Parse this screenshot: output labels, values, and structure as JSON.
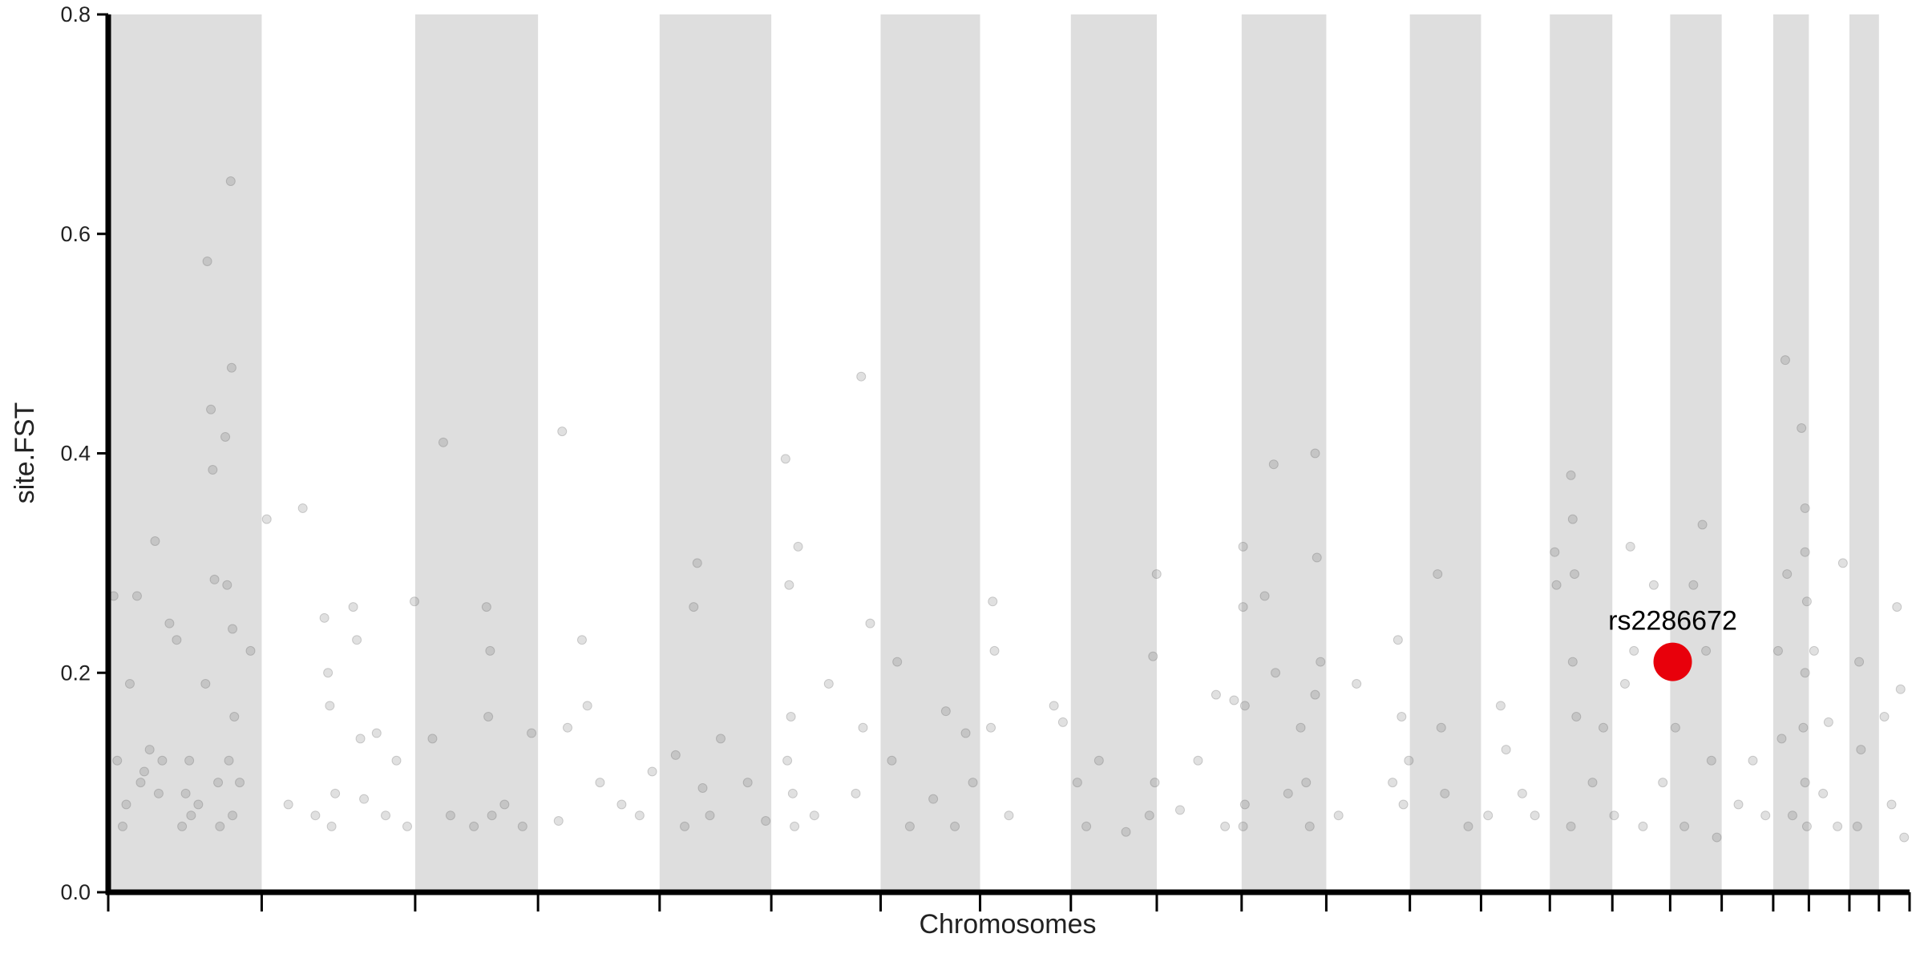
{
  "chart_data": {
    "type": "scatter",
    "x_label": "Chromosomes",
    "y_label": "site.FST",
    "xlim": [
      0,
      100
    ],
    "ylim": [
      0,
      0.8
    ],
    "yticks": [
      {
        "value": 0,
        "label": "0.0"
      },
      0.2,
      0.4,
      0.6,
      {
        "value": 0.8,
        "label": "0.8"
      }
    ],
    "xticks": [
      0,
      8.52,
      17.04,
      23.86,
      30.61,
      36.81,
      42.88,
      48.4,
      53.44,
      58.21,
      62.92,
      67.62,
      72.26,
      76.21,
      80.03,
      83.5,
      86.71,
      89.57,
      92.43,
      94.41,
      96.66,
      98.3,
      100
    ],
    "band_color": "#dedede",
    "series": [
      {
        "color": "#555555",
        "x": [
          0.5,
          0.3,
          0.8,
          1,
          1.2,
          1.6,
          1.8,
          2,
          2.3,
          2.6,
          2.8,
          3,
          3.4,
          3.8,
          4.1,
          4.3,
          4.5,
          4.6,
          5,
          5.4,
          5.5,
          5.7,
          5.8,
          5.9,
          6.1,
          6.2,
          6.5,
          6.6,
          6.8,
          6.85,
          6.9,
          6.9,
          7,
          7.3,
          7.9,
          6.7,
          8.8,
          10.8,
          10,
          11.5,
          12,
          12.2,
          12.3,
          12.4,
          12.6,
          13.6,
          13.8,
          14,
          14.2,
          14.9,
          15.4,
          16,
          16.6,
          17,
          18,
          18.6,
          19,
          20.3,
          21,
          21.2,
          21.1,
          21.3,
          22,
          23,
          23.5,
          25,
          25.2,
          25.5,
          26.3,
          26.6,
          27.3,
          28.5,
          29.5,
          30.2,
          31.5,
          32,
          32.5,
          32.7,
          33,
          33.4,
          34,
          35.5,
          36.5,
          37.6,
          37.8,
          37.9,
          38,
          38.1,
          37.7,
          38.3,
          39.2,
          40,
          41.8,
          41.5,
          42.3,
          41.9,
          43.5,
          43.8,
          44.5,
          45.8,
          46.5,
          47.6,
          47,
          48,
          49.1,
          49.2,
          49,
          50,
          52.5,
          53,
          53.8,
          54.3,
          55,
          56.5,
          57.8,
          58,
          58.2,
          58.1,
          59.5,
          60.5,
          61.5,
          62.5,
          62,
          63,
          63,
          63.1,
          63.1,
          63,
          64.2,
          64.7,
          64.8,
          65.5,
          66.2,
          66.7,
          67,
          67.3,
          67.1,
          67,
          66.5,
          68.3,
          69.3,
          71.3,
          71.6,
          71.8,
          71.9,
          72.2,
          73.8,
          74,
          74.2,
          75.5,
          76.6,
          77.3,
          77.6,
          78.5,
          79.2,
          80.3,
          80.4,
          81.2,
          81.3,
          81.4,
          81.3,
          81.5,
          81.2,
          82.4,
          83,
          83.6,
          84.2,
          84.5,
          84.7,
          85.2,
          85.8,
          86.3,
          87,
          87.5,
          88.5,
          88,
          88.7,
          89,
          89.3,
          90.5,
          91.3,
          92,
          92.7,
          93.1,
          93.2,
          92.9,
          93.5,
          94,
          94.2,
          94.2,
          94.3,
          94.2,
          94.1,
          94.2,
          94.3,
          94.7,
          95.2,
          95.5,
          96.3,
          96,
          97.2,
          97.3,
          97.1,
          98.6,
          99,
          99.3,
          99.5,
          99.7
        ],
        "values": [
          0.12,
          0.27,
          0.06,
          0.08,
          0.19,
          0.27,
          0.1,
          0.11,
          0.13,
          0.32,
          0.09,
          0.12,
          0.245,
          0.23,
          0.06,
          0.09,
          0.12,
          0.07,
          0.08,
          0.19,
          0.575,
          0.44,
          0.385,
          0.285,
          0.1,
          0.06,
          0.415,
          0.28,
          0.648,
          0.478,
          0.24,
          0.07,
          0.16,
          0.1,
          0.22,
          0.12,
          0.34,
          0.35,
          0.08,
          0.07,
          0.25,
          0.2,
          0.17,
          0.06,
          0.09,
          0.26,
          0.23,
          0.14,
          0.085,
          0.145,
          0.07,
          0.12,
          0.06,
          0.265,
          0.14,
          0.41,
          0.07,
          0.06,
          0.26,
          0.22,
          0.16,
          0.07,
          0.08,
          0.06,
          0.145,
          0.065,
          0.42,
          0.15,
          0.23,
          0.17,
          0.1,
          0.08,
          0.07,
          0.11,
          0.125,
          0.06,
          0.26,
          0.3,
          0.095,
          0.07,
          0.14,
          0.1,
          0.065,
          0.395,
          0.28,
          0.16,
          0.09,
          0.06,
          0.12,
          0.315,
          0.07,
          0.19,
          0.47,
          0.09,
          0.245,
          0.15,
          0.12,
          0.21,
          0.06,
          0.085,
          0.165,
          0.145,
          0.06,
          0.1,
          0.265,
          0.22,
          0.15,
          0.07,
          0.17,
          0.155,
          0.1,
          0.06,
          0.12,
          0.055,
          0.07,
          0.215,
          0.29,
          0.1,
          0.075,
          0.12,
          0.18,
          0.175,
          0.06,
          0.315,
          0.26,
          0.17,
          0.08,
          0.06,
          0.27,
          0.39,
          0.2,
          0.09,
          0.15,
          0.06,
          0.18,
          0.21,
          0.305,
          0.4,
          0.1,
          0.07,
          0.19,
          0.1,
          0.23,
          0.16,
          0.08,
          0.12,
          0.29,
          0.15,
          0.09,
          0.06,
          0.07,
          0.17,
          0.13,
          0.09,
          0.07,
          0.31,
          0.28,
          0.38,
          0.34,
          0.29,
          0.21,
          0.16,
          0.06,
          0.1,
          0.15,
          0.07,
          0.19,
          0.315,
          0.22,
          0.06,
          0.28,
          0.1,
          0.15,
          0.06,
          0.335,
          0.28,
          0.22,
          0.12,
          0.05,
          0.08,
          0.12,
          0.07,
          0.22,
          0.485,
          0.29,
          0.14,
          0.07,
          0.423,
          0.35,
          0.31,
          0.265,
          0.2,
          0.15,
          0.1,
          0.06,
          0.22,
          0.09,
          0.155,
          0.3,
          0.06,
          0.21,
          0.13,
          0.06,
          0.16,
          0.08,
          0.26,
          0.185,
          0.05
        ]
      },
      {
        "name": "rs2286672",
        "color": "#e8000b",
        "x": [
          86.85
        ],
        "values": [
          0.21
        ]
      }
    ]
  }
}
